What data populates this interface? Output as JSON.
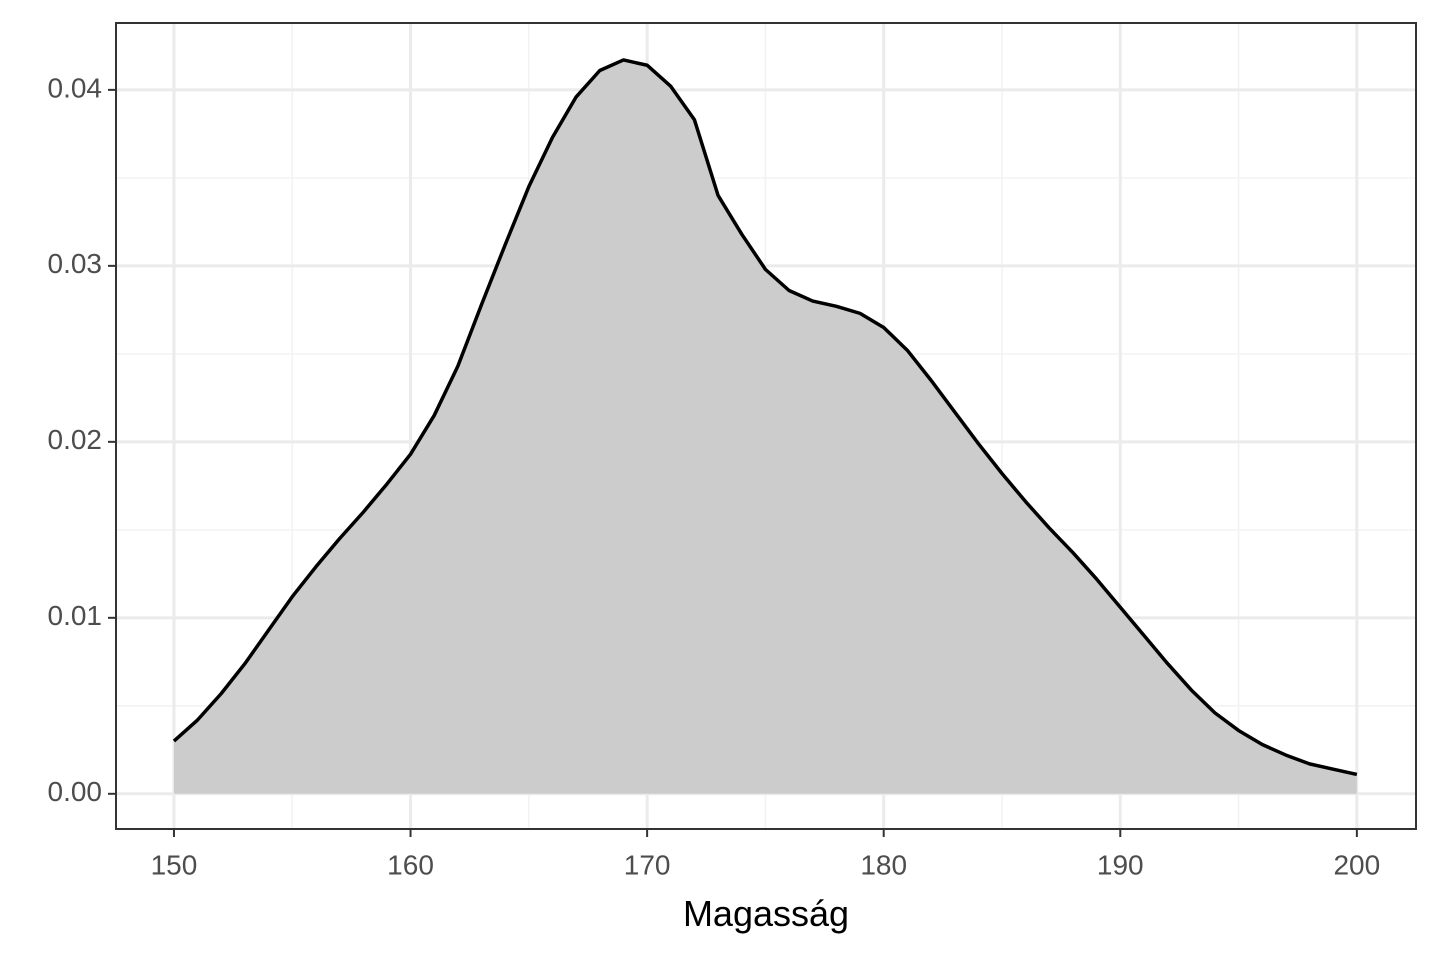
{
  "chart_data": {
    "type": "density",
    "xlabel": "Magasság",
    "x": [
      150,
      151,
      152,
      153,
      154,
      155,
      156,
      157,
      158,
      159,
      160,
      161,
      162,
      163,
      164,
      165,
      166,
      167,
      168,
      169,
      170,
      171,
      172,
      173,
      174,
      175,
      176,
      177,
      178,
      179,
      180,
      181,
      182,
      183,
      184,
      185,
      186,
      187,
      188,
      189,
      190,
      191,
      192,
      193,
      194,
      195,
      196,
      197,
      198,
      199,
      200
    ],
    "values": [
      0.003,
      0.0042,
      0.0057,
      0.0074,
      0.0093,
      0.0112,
      0.0129,
      0.0145,
      0.016,
      0.0176,
      0.0193,
      0.0215,
      0.0243,
      0.0278,
      0.0312,
      0.0345,
      0.0373,
      0.0396,
      0.0411,
      0.0417,
      0.0414,
      0.0402,
      0.0383,
      0.034,
      0.0318,
      0.0298,
      0.0286,
      0.028,
      0.0277,
      0.0273,
      0.0265,
      0.0252,
      0.0235,
      0.0217,
      0.0199,
      0.0182,
      0.0166,
      0.0151,
      0.0137,
      0.0122,
      0.0106,
      0.009,
      0.0074,
      0.0059,
      0.0046,
      0.0036,
      0.0028,
      0.0022,
      0.0017,
      0.0014,
      0.0011
    ],
    "fill": "#cccccc",
    "color": "#000000",
    "xlim": [
      147.55,
      202.5
    ],
    "xticks": [
      150,
      160,
      170,
      180,
      190,
      200
    ],
    "ylim": [
      -0.002,
      0.0438
    ],
    "yticks": [
      {
        "value": 0,
        "label": "0.00"
      },
      {
        "value": 0.01,
        "label": "0.01"
      },
      {
        "value": 0.02,
        "label": "0.02"
      },
      {
        "value": 0.03,
        "label": "0.03"
      },
      {
        "value": 0.04,
        "label": "0.04"
      }
    ],
    "grid": true
  }
}
